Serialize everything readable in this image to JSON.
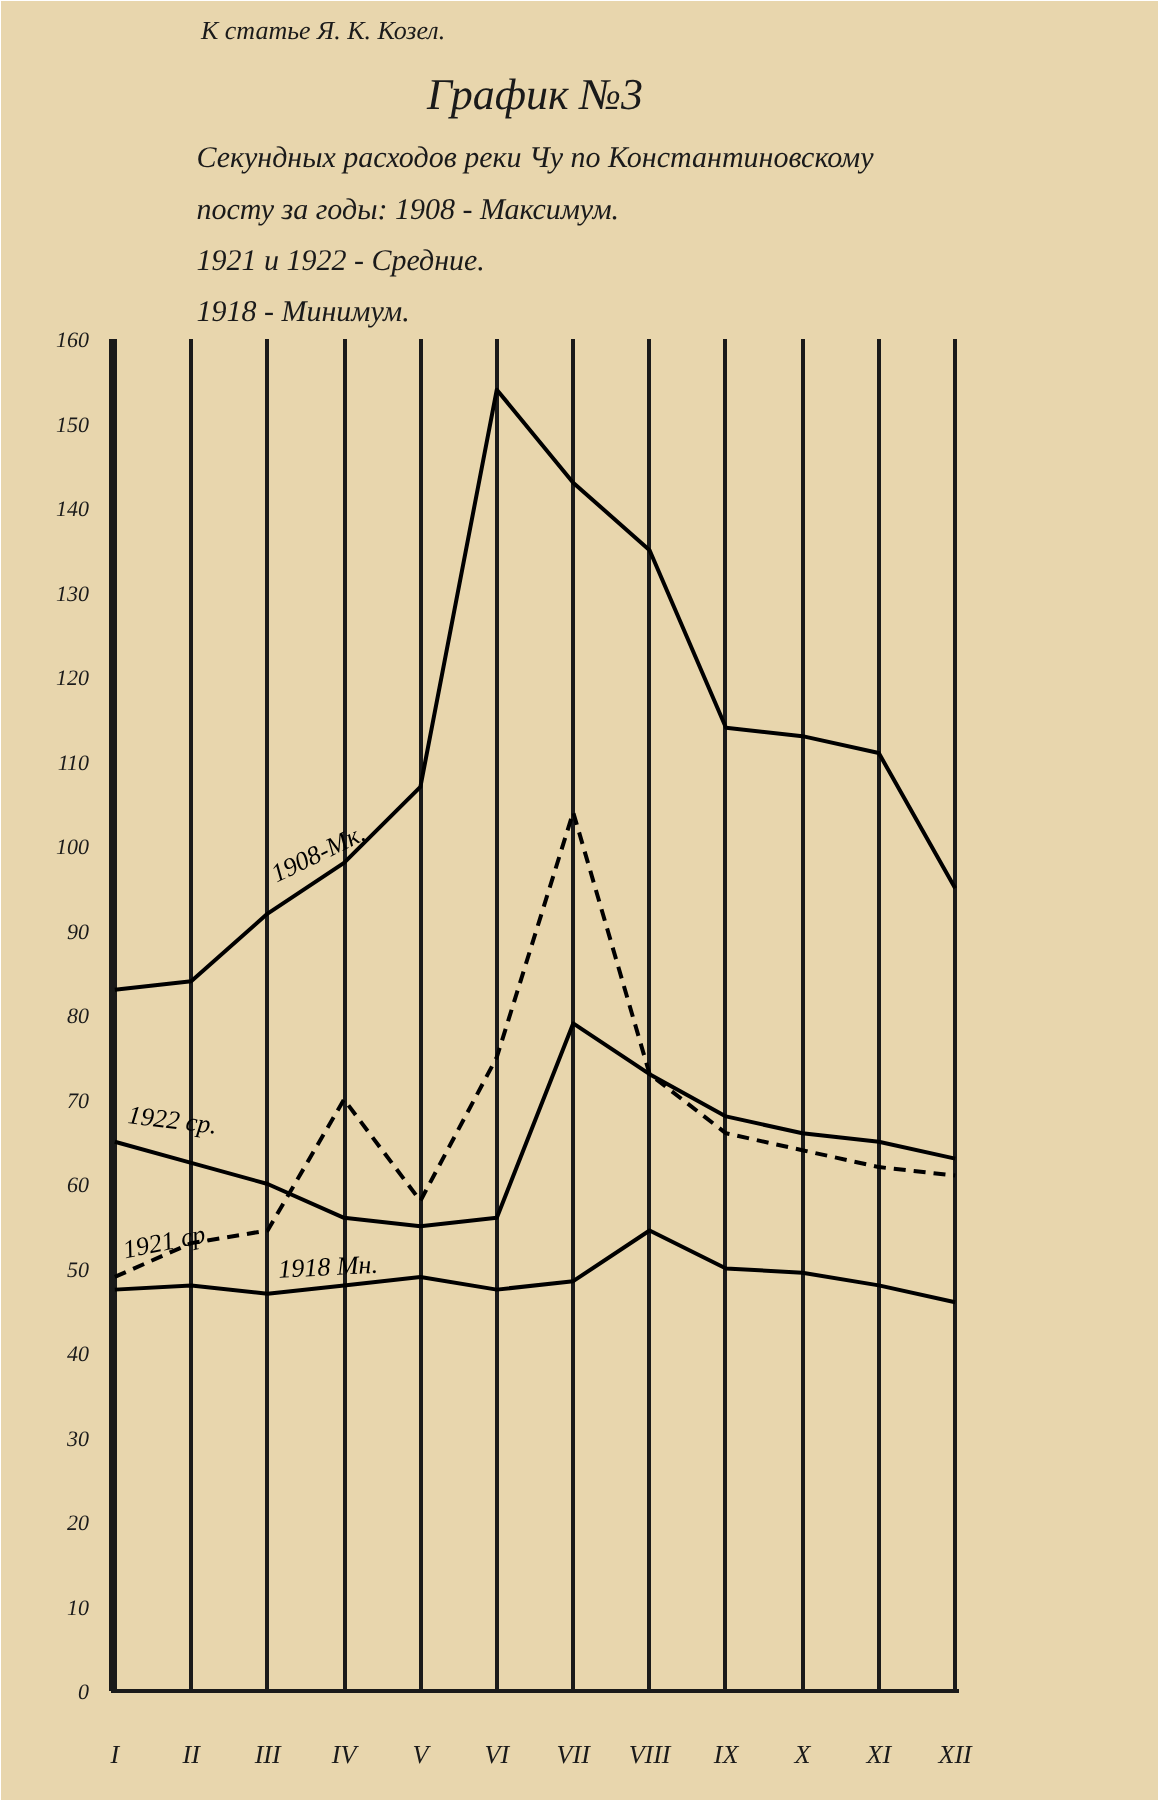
{
  "chart_data": {
    "type": "line",
    "title": "График №3",
    "subtitle": "Секундных расходов реки Чу по Константиновскому\nпосту за годы: 1908 - Максимум.\n1921 и 1922 - Средние.\n1918 - Минимум.",
    "annotations": [
      "К статье Я. К. Козел."
    ],
    "categories": [
      "I",
      "II",
      "III",
      "IV",
      "V",
      "VI",
      "VII",
      "VIII",
      "IX",
      "X",
      "XI",
      "XII"
    ],
    "series": [
      {
        "name": "1908-Мк.",
        "color": "#000000",
        "line_style": "solid",
        "values": [
          83,
          84,
          92,
          98,
          107,
          154,
          143,
          135,
          114,
          113,
          111,
          95
        ]
      },
      {
        "name": "1922 ср.",
        "color": "#000000",
        "line_style": "solid",
        "values": [
          65,
          62.5,
          60,
          56,
          55,
          56,
          79,
          73,
          68,
          66,
          65,
          63
        ]
      },
      {
        "name": "1921 ср.",
        "color": "#000000",
        "line_style": "dashed",
        "values": [
          49,
          53,
          54.5,
          70,
          58,
          75,
          104,
          73,
          66,
          64,
          62,
          61
        ]
      },
      {
        "name": "1918 Мн.",
        "color": "#000000",
        "line_style": "solid",
        "values": [
          47.5,
          48,
          47,
          48,
          49,
          47.5,
          48.5,
          54.5,
          50,
          49.5,
          48,
          46
        ]
      }
    ],
    "ylim": [
      0,
      160
    ],
    "yticks": [
      0,
      10,
      20,
      30,
      40,
      50,
      60,
      70,
      80,
      90,
      100,
      110,
      120,
      130,
      140,
      150,
      160
    ],
    "grid": "x",
    "marker": "none"
  }
}
